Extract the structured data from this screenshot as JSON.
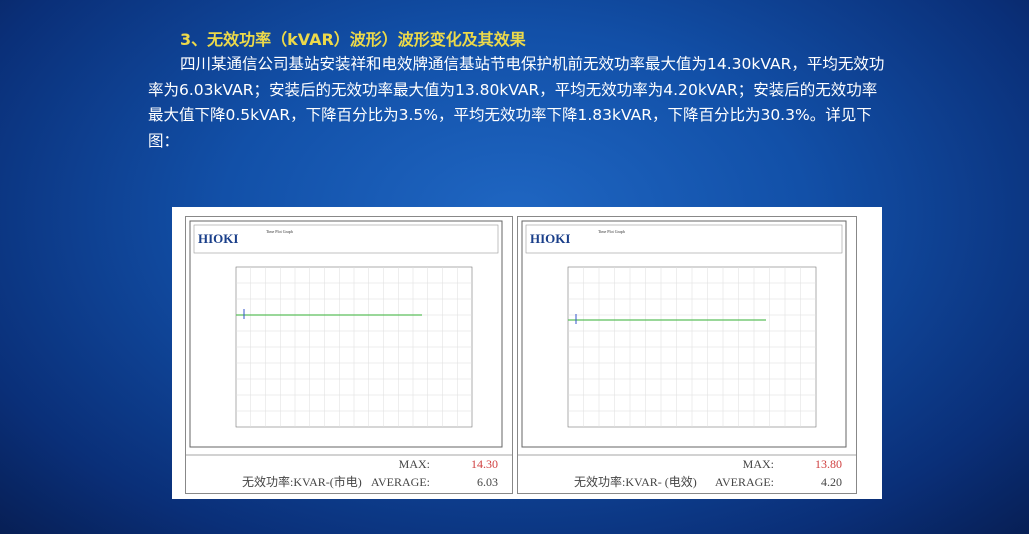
{
  "heading": "3、无效功率（kVAR）波形）波形变化及其效果",
  "paragraph": "四川某通信公司基站安装祥和电效牌通信基站节电保护机前无效功率最大值为14.30kVAR，平均无效功率为6.03kVAR；安装后的无效功率最大值为13.80kVAR，平均无效功率为4.20kVAR；安装后的无效功率最大值下降0.5kVAR，下降百分比为3.5%，平均无效功率下降1.83kVAR，下降百分比为30.3%。详见下图：",
  "panels": [
    {
      "brand": "HIOKI",
      "graph_title": "Time Plot Graph",
      "max_label": "MAX:",
      "max_value": "14.30",
      "caption": "无效功率:KVAR-(市电)",
      "avg_label": "AVERAGE:",
      "avg_value": "6.03"
    },
    {
      "brand": "HIOKI",
      "graph_title": "Time Plot Graph",
      "max_label": "MAX:",
      "max_value": "13.80",
      "caption": "无效功率:KVAR- (电效)",
      "avg_label": "AVERAGE:",
      "avg_value": "4.20"
    }
  ]
}
